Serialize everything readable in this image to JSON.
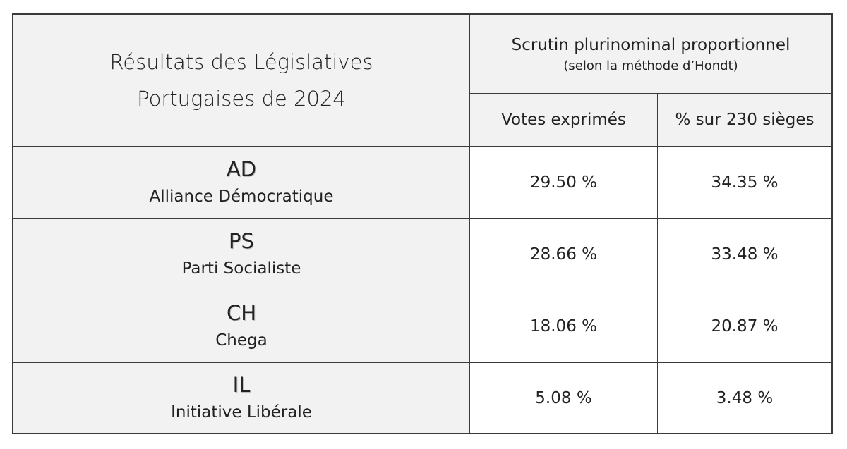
{
  "header": {
    "title_line1": "Résultats des Législatives",
    "title_line2": "Portugaises de 2024",
    "scrutin_main": "Scrutin plurinominal proportionnel",
    "scrutin_sub": "(selon la méthode d’Hondt)",
    "col_votes": "Votes exprimés",
    "col_seats": "% sur 230 sièges"
  },
  "rows": [
    {
      "abbr": "AD",
      "name": "Alliance Démocratique",
      "votes": "29.50 %",
      "seats": "34.35 %"
    },
    {
      "abbr": "PS",
      "name": "Parti Socialiste",
      "votes": "28.66 %",
      "seats": "33.48 %"
    },
    {
      "abbr": "CH",
      "name": "Chega",
      "votes": "18.06 %",
      "seats": "20.87 %"
    },
    {
      "abbr": "IL",
      "name": "Initiative Libérale",
      "votes": "5.08 %",
      "seats": "3.48 %"
    }
  ],
  "colors": {
    "header_background": "#f2f2f2",
    "party_cell_background": "#f2f2f2",
    "value_cell_background": "#ffffff",
    "border": "#3a3a3a"
  }
}
